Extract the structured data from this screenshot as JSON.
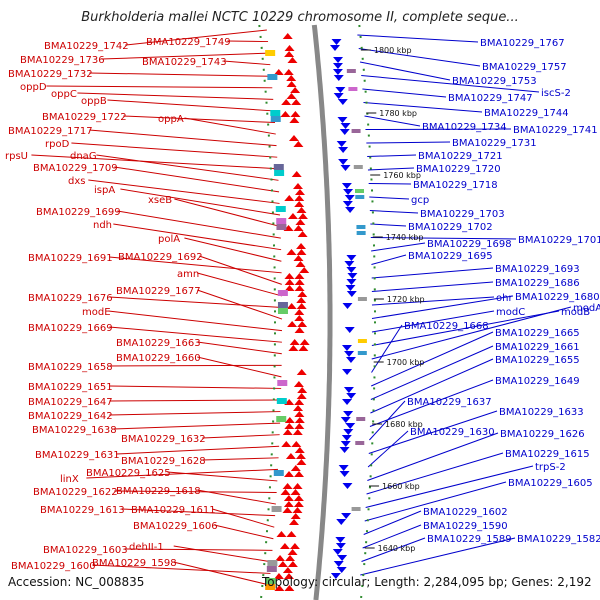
{
  "header": {
    "title": "Burkholderia mallei NCTC 10229 chromosome II, complete seque..."
  },
  "footer": {
    "accession": "Accession: NC_008835",
    "stats": "Topology: circular; Length: 2,284,095 bp; Genes: 2,192"
  },
  "colors": {
    "forward": "#ee0000",
    "reverse": "#0000ee",
    "left_label": "#cc0000",
    "right_label": "#0000cc",
    "backbone": "#888888"
  },
  "kbp_marks": [
    "1800 kbp",
    "1780 kbp",
    "1760 kbp",
    "1740 kbp",
    "1720 kbp",
    "1700 kbp",
    "1680 kbp",
    "1660 kbp",
    "1640 kbp"
  ],
  "left_labels": [
    "BMA10229_1742",
    "BMA10229_1749",
    "BMA10229_1736",
    "BMA10229_1743",
    "BMA10229_1732",
    "oppD",
    "oppC",
    "oppB",
    "BMA10229_1722",
    "oppA",
    "BMA10229_1717",
    "rpoD",
    "rpsU",
    "dnaG",
    "BMA10229_1709",
    "dxs",
    "ispA",
    "xseB",
    "BMA10229_1699",
    "ndh",
    "polA",
    "BMA10229_1691",
    "BMA10229_1692",
    "amn",
    "BMA10229_1676",
    "BMA10229_1677",
    "modE",
    "BMA10229_1669",
    "BMA10229_1663",
    "BMA10229_1658",
    "BMA10229_1660",
    "BMA10229_1651",
    "BMA10229_1647",
    "BMA10229_1642",
    "BMA10229_1638",
    "BMA10229_1632",
    "BMA10229_1631",
    "BMA10229_1628",
    "linX",
    "BMA10229_1625",
    "BMA10229_1622",
    "BMA10229_1618",
    "BMA10229_1613",
    "BMA10229_1611",
    "BMA10229_1606",
    "BMA10229_1603",
    "dehII-1",
    "BMA10229_1600",
    "BMA10229_1598"
  ],
  "right_labels": [
    "BMA10229_1767",
    "BMA10229_1757",
    "BMA10229_1753",
    "iscS-2",
    "BMA10229_1747",
    "BMA10229_1744",
    "BMA10229_1734",
    "BMA10229_1741",
    "BMA10229_1731",
    "BMA10229_1721",
    "BMA10229_1720",
    "BMA10229_1718",
    "gcp",
    "BMA10229_1703",
    "BMA10229_1702",
    "BMA10229_1701",
    "BMA10229_1698",
    "BMA10229_1695",
    "BMA10229_1693",
    "BMA10229_1686",
    "ohr",
    "BMA10229_1680",
    "modC",
    "modB",
    "modA",
    "BMA10229_1668",
    "BMA10229_1665",
    "BMA10229_1661",
    "BMA10229_1655",
    "BMA10229_1649",
    "BMA10229_1637",
    "BMA10229_1633",
    "BMA10229_1630",
    "BMA10229_1626",
    "BMA10229_1615",
    "trpS-2",
    "BMA10229_1605",
    "BMA10229_1602",
    "BMA10229_1590",
    "BMA10229_1589",
    "BMA10229_1582"
  ]
}
